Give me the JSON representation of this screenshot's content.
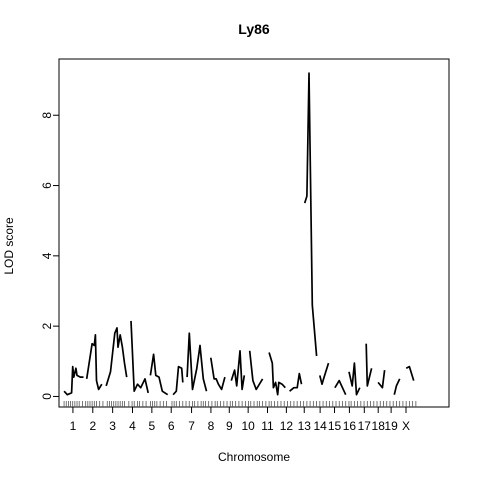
{
  "chart_data": {
    "type": "line",
    "title": "Ly86",
    "xlabel": "Chromosome",
    "ylabel": "LOD score",
    "ylim": [
      -0.3,
      9.6
    ],
    "xlim": [
      0,
      20.3
    ],
    "grid": false,
    "legend": "none",
    "yticks": [
      0,
      2,
      4,
      6,
      8
    ],
    "chromosomes": [
      {
        "label": "1",
        "start": 0.0,
        "end": 1.0
      },
      {
        "label": "2",
        "start": 1.0,
        "end": 2.0
      },
      {
        "label": "3",
        "start": 2.0,
        "end": 3.0
      },
      {
        "label": "4",
        "start": 3.0,
        "end": 4.0
      },
      {
        "label": "5",
        "start": 4.0,
        "end": 4.95
      },
      {
        "label": "6",
        "start": 4.95,
        "end": 5.95
      },
      {
        "label": "7",
        "start": 5.95,
        "end": 7.0
      },
      {
        "label": "8",
        "start": 7.0,
        "end": 7.9
      },
      {
        "label": "9",
        "start": 7.9,
        "end": 8.85
      },
      {
        "label": "10",
        "start": 8.85,
        "end": 9.8
      },
      {
        "label": "11",
        "start": 9.8,
        "end": 10.8
      },
      {
        "label": "12",
        "start": 10.8,
        "end": 11.7
      },
      {
        "label": "13",
        "start": 11.7,
        "end": 12.6
      },
      {
        "label": "14",
        "start": 12.6,
        "end": 13.3
      },
      {
        "label": "15",
        "start": 13.3,
        "end": 14.05
      },
      {
        "label": "16",
        "start": 14.05,
        "end": 14.8
      },
      {
        "label": "17",
        "start": 14.8,
        "end": 15.55
      },
      {
        "label": "18",
        "start": 15.55,
        "end": 16.2
      },
      {
        "label": "19",
        "start": 16.2,
        "end": 16.85
      },
      {
        "label": "X",
        "start": 16.85,
        "end": 17.7
      }
    ],
    "series": [
      {
        "chr": "1",
        "x": [
          0.05,
          0.2,
          0.4,
          0.45,
          0.5,
          0.6,
          0.65,
          0.8,
          0.95
        ],
        "y": [
          0.15,
          0.05,
          0.1,
          0.85,
          0.55,
          0.8,
          0.6,
          0.55,
          0.55
        ]
      },
      {
        "chr": "2",
        "x": [
          1.1,
          1.35,
          1.45,
          1.5,
          1.55,
          1.65,
          1.8
        ],
        "y": [
          0.5,
          1.5,
          1.45,
          1.75,
          0.45,
          0.2,
          0.35
        ]
      },
      {
        "chr": "3",
        "x": [
          2.0,
          2.2,
          2.4,
          2.5,
          2.55,
          2.65,
          2.75,
          2.85,
          2.95
        ],
        "y": [
          0.3,
          0.7,
          1.8,
          1.95,
          1.4,
          1.75,
          1.4,
          0.95,
          0.55
        ]
      },
      {
        "chr": "4",
        "x": [
          3.15,
          3.3,
          3.45,
          3.6,
          3.8,
          3.95
        ],
        "y": [
          2.15,
          0.15,
          0.35,
          0.25,
          0.5,
          0.1
        ]
      },
      {
        "chr": "5",
        "x": [
          4.05,
          4.2,
          4.3,
          4.45,
          4.6,
          4.85
        ],
        "y": [
          0.6,
          1.2,
          0.6,
          0.55,
          0.15,
          0.05
        ]
      },
      {
        "chr": "6",
        "x": [
          5.1,
          5.25,
          5.35,
          5.5,
          5.55
        ],
        "y": [
          0.05,
          0.15,
          0.85,
          0.8,
          0.4
        ]
      },
      {
        "chr": "7",
        "x": [
          5.75,
          5.85,
          6.0,
          6.2,
          6.35,
          6.5,
          6.65
        ],
        "y": [
          0.55,
          1.8,
          0.2,
          0.8,
          1.45,
          0.5,
          0.15
        ]
      },
      {
        "chr": "8",
        "x": [
          6.85,
          7.0,
          7.1,
          7.2,
          7.35,
          7.5
        ],
        "y": [
          1.1,
          0.5,
          0.5,
          0.35,
          0.2,
          0.55
        ]
      },
      {
        "chr": "9",
        "x": [
          7.8,
          7.95,
          8.05,
          8.2,
          8.3,
          8.4
        ],
        "y": [
          0.45,
          0.75,
          0.3,
          1.3,
          0.2,
          0.6
        ]
      },
      {
        "chr": "10",
        "x": [
          8.65,
          8.8,
          8.95,
          9.1,
          9.25
        ],
        "y": [
          1.3,
          0.45,
          0.2,
          0.35,
          0.5
        ]
      },
      {
        "chr": "11",
        "x": [
          9.55,
          9.7,
          9.75,
          9.85,
          9.95,
          10.0,
          10.15,
          10.3
        ],
        "y": [
          1.25,
          0.95,
          0.25,
          0.4,
          0.05,
          0.4,
          0.35,
          0.25
        ]
      },
      {
        "chr": "12",
        "x": [
          10.5,
          10.7,
          10.85,
          10.95,
          11.05
        ],
        "y": [
          0.15,
          0.25,
          0.25,
          0.65,
          0.35
        ]
      },
      {
        "chr": "13",
        "x": [
          11.2,
          11.3,
          11.4,
          11.55,
          11.75
        ],
        "y": [
          5.5,
          5.7,
          9.2,
          2.6,
          1.15
        ]
      },
      {
        "chr": "14",
        "x": [
          11.9,
          12.0,
          12.1,
          12.3
        ],
        "y": [
          0.6,
          0.35,
          0.55,
          0.95
        ]
      },
      {
        "chr": "15",
        "x": [
          12.6,
          12.8,
          13.1
        ],
        "y": [
          0.25,
          0.45,
          0.05
        ]
      },
      {
        "chr": "16",
        "x": [
          13.25,
          13.4,
          13.5,
          13.6,
          13.75
        ],
        "y": [
          0.7,
          0.3,
          0.95,
          0.05,
          0.25
        ]
      },
      {
        "chr": "17",
        "x": [
          14.05,
          14.1,
          14.3
        ],
        "y": [
          1.5,
          0.3,
          0.8
        ]
      },
      {
        "chr": "18",
        "x": [
          14.6,
          14.8,
          14.9
        ],
        "y": [
          0.4,
          0.25,
          0.75
        ]
      },
      {
        "chr": "19",
        "x": [
          15.35,
          15.45,
          15.6
        ],
        "y": [
          0.05,
          0.3,
          0.5
        ]
      },
      {
        "chr": "X",
        "x": [
          15.9,
          16.05,
          16.25
        ],
        "y": [
          0.8,
          0.85,
          0.45
        ]
      }
    ],
    "markers": [
      0.05,
      0.15,
      0.25,
      0.35,
      0.45,
      0.55,
      0.65,
      0.75,
      0.9,
      1.05,
      1.15,
      1.25,
      1.35,
      1.45,
      1.55,
      1.7,
      1.85,
      2.05,
      2.15,
      2.25,
      2.35,
      2.45,
      2.55,
      2.65,
      2.75,
      2.85,
      3.05,
      3.2,
      3.3,
      3.45,
      3.55,
      3.7,
      3.85,
      4.05,
      4.15,
      4.25,
      4.35,
      4.5,
      4.65,
      4.8,
      5.05,
      5.15,
      5.25,
      5.4,
      5.55,
      5.7,
      5.85,
      6.0,
      6.1,
      6.25,
      6.4,
      6.5,
      6.6,
      6.75,
      6.9,
      7.05,
      7.15,
      7.3,
      7.45,
      7.6,
      7.75,
      7.85,
      8.0,
      8.15,
      8.3,
      8.45,
      8.6,
      8.7,
      8.85,
      9.0,
      9.1,
      9.25,
      9.4,
      9.55,
      9.65,
      9.8,
      9.95,
      10.1,
      10.25,
      10.4,
      10.55,
      10.7,
      10.85,
      11.0,
      11.15,
      11.3,
      11.45,
      11.6,
      11.75,
      11.9,
      12.05,
      12.2,
      12.35,
      12.5,
      12.65,
      12.8,
      12.95,
      13.1,
      13.25,
      13.35,
      13.5,
      13.65,
      13.8,
      13.95,
      14.1,
      14.25,
      14.4,
      14.55,
      14.7,
      14.85,
      15.0,
      15.15,
      15.3,
      15.45,
      15.6,
      15.75,
      15.9,
      16.05,
      16.2,
      16.35
    ]
  }
}
